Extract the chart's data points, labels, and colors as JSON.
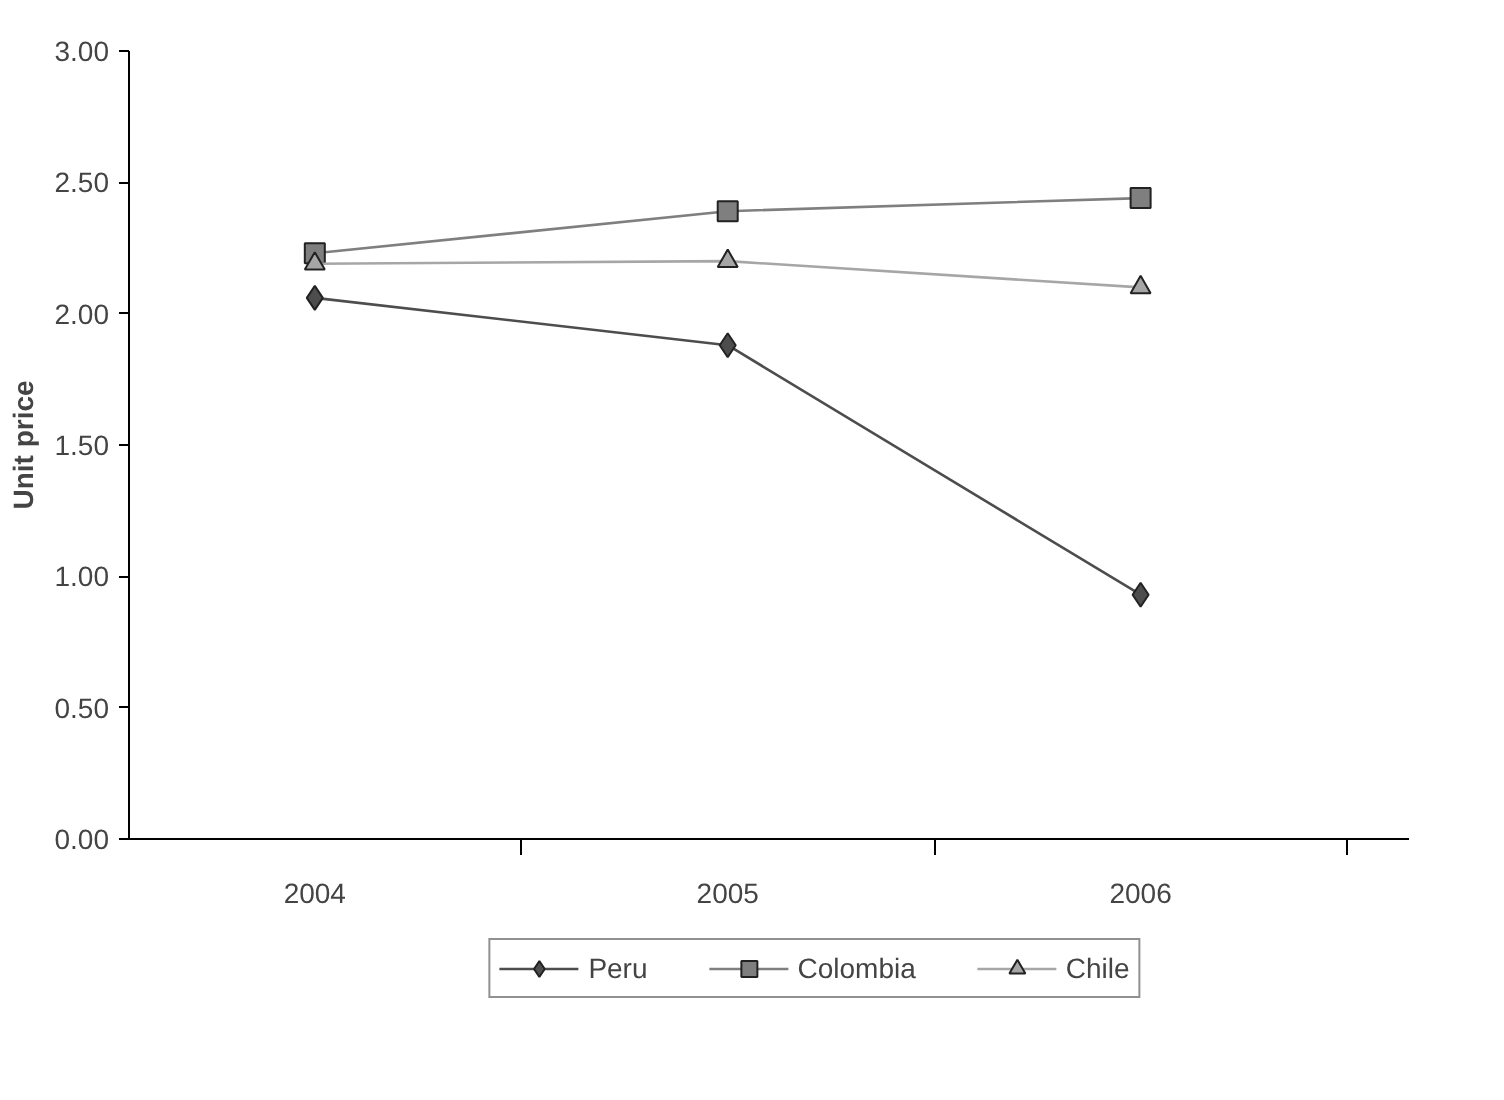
{
  "chart_data": {
    "type": "line",
    "ylabel": "Unit price",
    "categories": [
      "2004",
      "2005",
      "2006"
    ],
    "series": [
      {
        "name": "Peru",
        "color": "#4d4d4d",
        "marker": "diamond",
        "values": [
          2.06,
          1.88,
          0.93
        ]
      },
      {
        "name": "Colombia",
        "color": "#7f7f7f",
        "marker": "square",
        "values": [
          2.23,
          2.39,
          2.44
        ]
      },
      {
        "name": "Chile",
        "color": "#a6a6a6",
        "marker": "triangle",
        "values": [
          2.19,
          2.2,
          2.1
        ]
      }
    ],
    "ylim": [
      0,
      3
    ],
    "yticks": [
      {
        "value": 0,
        "label": "0.00"
      },
      {
        "value": 0.5,
        "label": "0.50"
      },
      {
        "value": 1,
        "label": "1.00"
      },
      {
        "value": 1.5,
        "label": "1.50"
      },
      {
        "value": 2,
        "label": "2.00"
      },
      {
        "value": 2.5,
        "label": "2.50"
      },
      {
        "value": 3,
        "label": "3.00"
      }
    ],
    "grid": false,
    "legend": "bottom"
  }
}
